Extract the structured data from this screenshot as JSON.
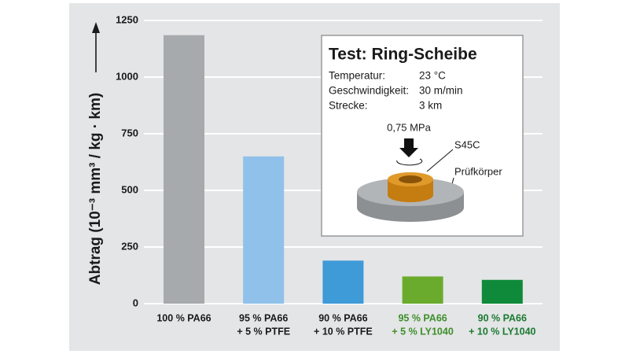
{
  "chart_data": {
    "type": "bar",
    "y_label": "Abtrag (10⁻³ mm³ / kg · km)",
    "categories": [
      [
        "100 % PA66"
      ],
      [
        "95 % PA66",
        "+ 5 % PTFE"
      ],
      [
        "90 % PA66",
        "+ 10 % PTFE"
      ],
      [
        "95 % PA66",
        "+ 5 % LY1040"
      ],
      [
        "90 % PA66",
        "+ 10 % LY1040"
      ]
    ],
    "category_label_colors": [
      "#1a1a1a",
      "#1a1a1a",
      "#1a1a1a",
      "#3c8f2a",
      "#1a7a32"
    ],
    "values": [
      1185,
      650,
      190,
      120,
      105
    ],
    "colors": [
      "#a6aaad",
      "#8fc1ea",
      "#3f9ad8",
      "#6aab2e",
      "#0e8a3a"
    ],
    "ylim": [
      0,
      1250
    ],
    "yticks": [
      0,
      250,
      500,
      750,
      1000,
      1250
    ],
    "grid": true,
    "inset": {
      "title": "Test: Ring-Scheibe",
      "rows": [
        [
          "Temperatur:",
          "23 °C"
        ],
        [
          "Geschwindigkeit:",
          "30 m/min"
        ],
        [
          "Strecke:",
          "3 km"
        ]
      ],
      "load": "0,75 MPa",
      "ring": "S45C",
      "specimen": "Prüfkörper"
    }
  }
}
